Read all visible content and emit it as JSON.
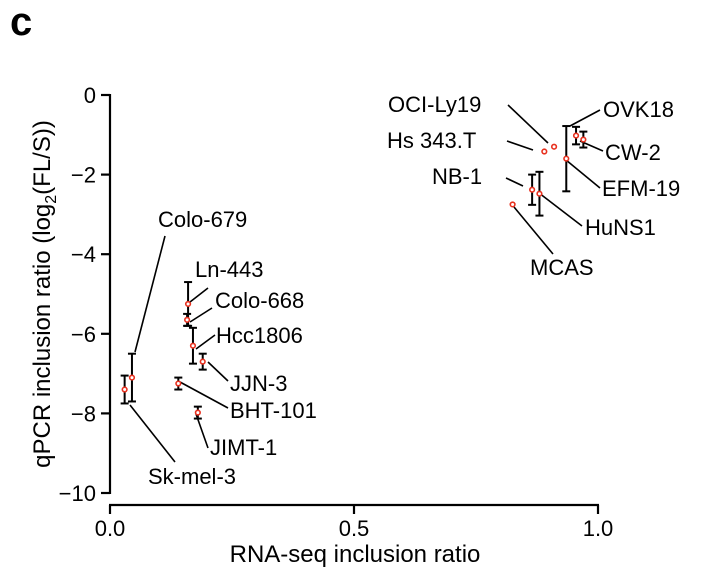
{
  "panel_label": "c",
  "chart_data": {
    "type": "scatter",
    "xlabel": "RNA-seq inclusion ratio",
    "ylabel_prefix": "qPCR inclusion ratio (log",
    "ylabel_sub": "2",
    "ylabel_suffix": "(FL/S))",
    "xlim": [
      0.0,
      1.0
    ],
    "ylim": [
      -10,
      0
    ],
    "x_ticks": [
      0.0,
      0.5,
      1.0
    ],
    "x_tick_labels": [
      "0.0",
      "0.5",
      "1.0"
    ],
    "y_ticks": [
      0,
      -2,
      -4,
      -6,
      -8,
      -10
    ],
    "y_tick_labels": [
      "0",
      "−2",
      "−4",
      "−6",
      "−8",
      "−10"
    ],
    "marker_color": "#e8311f",
    "points": [
      {
        "label": "OCI-Ly19",
        "x": 0.91,
        "y": -1.3
      },
      {
        "label": "OVK18",
        "x": 0.955,
        "y": -1.02,
        "err": 0.22
      },
      {
        "label": "Hs 343.T",
        "x": 0.89,
        "y": -1.42
      },
      {
        "label": "CW-2",
        "x": 0.97,
        "y": -1.12,
        "err": 0.2
      },
      {
        "label": "EFM-19",
        "x": 0.935,
        "y": -1.6,
        "err": 0.82
      },
      {
        "label": "NB-1",
        "x": 0.865,
        "y": -2.38,
        "err": 0.38
      },
      {
        "label": "HuNS1",
        "x": 0.88,
        "y": -2.48,
        "err": 0.55
      },
      {
        "label": "MCAS",
        "x": 0.825,
        "y": -2.75
      },
      {
        "label": "Colo-679",
        "x": 0.045,
        "y": -7.1,
        "err": 0.6
      },
      {
        "label": "Ln-443",
        "x": 0.16,
        "y": -5.25,
        "err": 0.55
      },
      {
        "label": "Colo-668",
        "x": 0.158,
        "y": -5.65,
        "err": 0.15
      },
      {
        "label": "Hcc1806",
        "x": 0.17,
        "y": -6.3,
        "err": 0.45
      },
      {
        "label": "JJN-3",
        "x": 0.19,
        "y": -6.7,
        "err": 0.2
      },
      {
        "label": "BHT-101",
        "x": 0.14,
        "y": -7.25,
        "err": 0.15
      },
      {
        "label": "JIMT-1",
        "x": 0.18,
        "y": -7.98,
        "err": 0.15
      },
      {
        "label": "Sk-mel-3",
        "x": 0.03,
        "y": -7.4,
        "err": 0.35
      }
    ]
  }
}
